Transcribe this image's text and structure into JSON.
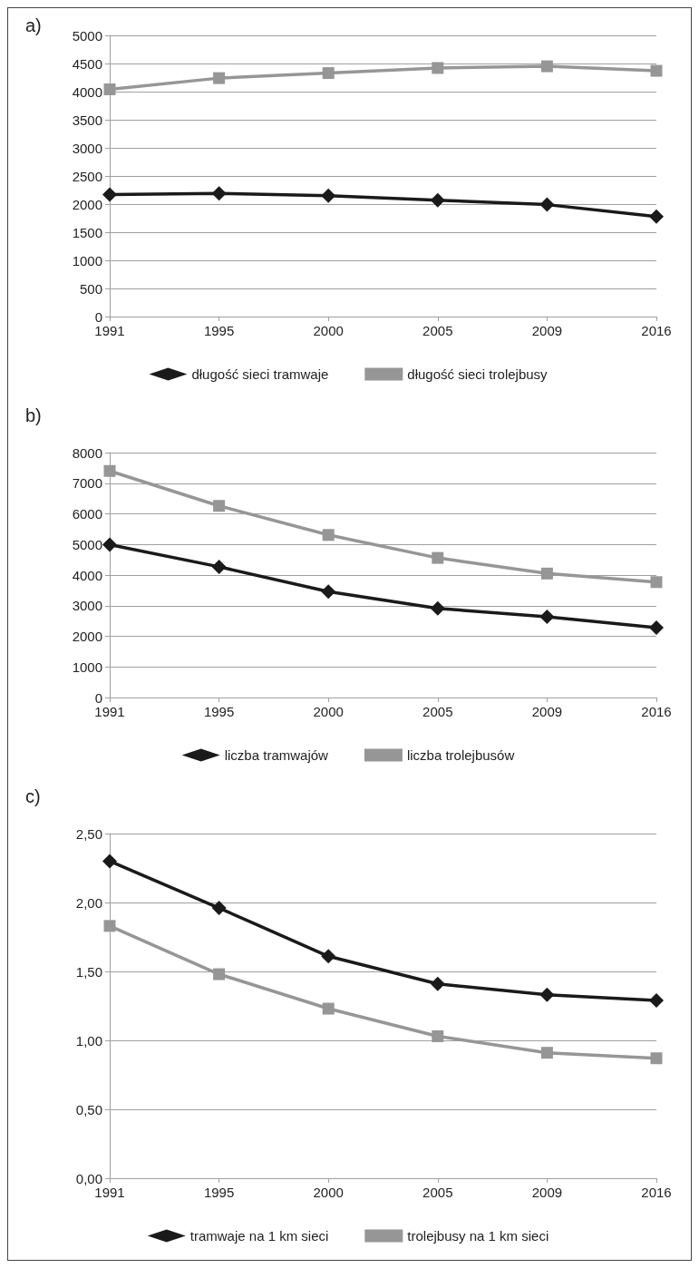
{
  "chart_data": [
    {
      "type": "line",
      "title": "a)",
      "categories": [
        "1991",
        "1995",
        "2000",
        "2005",
        "2009",
        "2016"
      ],
      "series": [
        {
          "name": "długość sieci tramwaje",
          "color": "#1a1a1a",
          "marker": "diamond",
          "values": [
            2170,
            2190,
            2150,
            2070,
            1990,
            1780
          ]
        },
        {
          "name": "długość sieci trolejbusy",
          "color": "#969696",
          "marker": "square",
          "values": [
            4040,
            4240,
            4330,
            4420,
            4450,
            4370
          ]
        }
      ],
      "ylim": [
        0,
        5000
      ],
      "yticks": [
        0,
        500,
        1000,
        1500,
        2000,
        2500,
        3000,
        3500,
        4000,
        4500,
        5000
      ],
      "grid": "y",
      "legend": "bottom",
      "line_style": "solid"
    },
    {
      "type": "line",
      "title": "b)",
      "categories": [
        "1991",
        "1995",
        "2000",
        "2005",
        "2009",
        "2016"
      ],
      "series": [
        {
          "name": "liczba tramwajów",
          "color": "#1a1a1a",
          "marker": "diamond",
          "values": [
            4990,
            4270,
            3460,
            2910,
            2640,
            2280
          ]
        },
        {
          "name": "liczba trolejbusów",
          "color": "#969696",
          "marker": "square",
          "values": [
            7400,
            6260,
            5310,
            4560,
            4050,
            3770
          ]
        }
      ],
      "ylim": [
        0,
        8000
      ],
      "yticks": [
        0,
        1000,
        2000,
        3000,
        4000,
        5000,
        6000,
        7000,
        8000
      ],
      "grid": "y",
      "legend": "bottom",
      "line_style": "solid"
    },
    {
      "type": "line",
      "title": "c)",
      "categories": [
        "1991",
        "1995",
        "2000",
        "2005",
        "2009",
        "2016"
      ],
      "series": [
        {
          "name": "tramwaje na 1 km sieci",
          "color": "#1a1a1a",
          "marker": "diamond",
          "values": [
            2.3,
            1.96,
            1.61,
            1.41,
            1.33,
            1.29
          ]
        },
        {
          "name": "trolejbusy na 1 km sieci",
          "color": "#969696",
          "marker": "square",
          "values": [
            1.83,
            1.48,
            1.23,
            1.03,
            0.91,
            0.87
          ]
        }
      ],
      "ylim": [
        0,
        2.5
      ],
      "yticks": [
        {
          "value": 0,
          "label": "0,00"
        },
        {
          "value": 0.5,
          "label": "0,50"
        },
        {
          "value": 1,
          "label": "1,00"
        },
        {
          "value": 1.5,
          "label": "1,50"
        },
        {
          "value": 2,
          "label": "2,00"
        },
        {
          "value": 2.5,
          "label": "2,50"
        }
      ],
      "grid": "y",
      "legend": "bottom",
      "line_style": "solid"
    }
  ]
}
